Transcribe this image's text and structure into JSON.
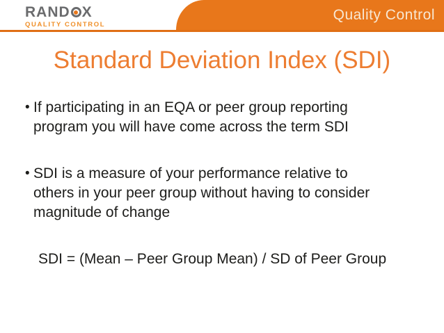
{
  "header": {
    "logo": {
      "brand_prefix": "RAND",
      "brand_suffix": "X",
      "subtitle": "QUALITY CONTROL"
    },
    "band_label": "Quality Control"
  },
  "slide": {
    "title": "Standard Deviation Index (SDI)",
    "bullets": [
      {
        "marker": "•",
        "text": "If participating in an EQA or peer group reporting\nprogram you will have come across the term SDI"
      },
      {
        "marker": "•",
        "text": "SDI is a measure of your performance relative to\nothers in your peer group without having to consider\nmagnitude of change"
      }
    ],
    "formula": "SDI = (Mean – Peer Group Mean) / SD of Peer Group"
  },
  "colors": {
    "brand_orange": "#E8771B",
    "rule_orange": "#E06F15",
    "title_orange": "#ED7D31",
    "logo_gray": "#6A6B6D",
    "logo_subtitle_orange": "#F0902A",
    "band_text": "#F8E7D2",
    "body_text": "#1D1D1B",
    "background": "#FFFFFF"
  }
}
